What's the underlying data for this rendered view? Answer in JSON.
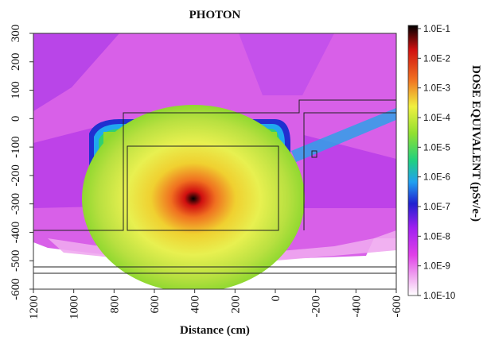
{
  "chart_data": {
    "type": "heatmap",
    "title": "PHOTON",
    "xlabel": "Distance (cm)",
    "ylabel": "",
    "colorbar_label": "DOSE EQUIVALENT (pSv/e-)",
    "xlim": [
      1200,
      -600
    ],
    "ylim": [
      -600,
      300
    ],
    "x_ticks": [
      "1200",
      "1000",
      "800",
      "600",
      "400",
      "200",
      "0",
      "-200",
      "-400",
      "-600"
    ],
    "y_ticks": [
      "-600",
      "-500",
      "-400",
      "-300",
      "-200",
      "-100",
      "0",
      "100",
      "200",
      "300"
    ],
    "colorbar_ticks": [
      "1.0E-1",
      "1.0E-2",
      "1.0E-3",
      "1.0E-4",
      "1.0E-5",
      "1.0E-6",
      "1.0E-7",
      "1.0E-8",
      "1.0E-9",
      "1.0E-10"
    ],
    "scale": "log",
    "source_position": [
      410,
      -280
    ],
    "color_scale": [
      "#ffffff",
      "#f0a8f0",
      "#e040e8",
      "#a020f0",
      "#2020d0",
      "#20a0f0",
      "#20d080",
      "#90e030",
      "#f0f040",
      "#f0a020",
      "#e02010",
      "#000000"
    ]
  }
}
